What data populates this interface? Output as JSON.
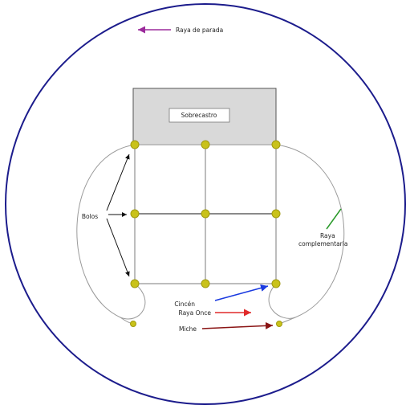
{
  "diagram": {
    "labels": {
      "raya_de_parada": "Raya de parada",
      "sobrecastro": "Sobrecastro",
      "bolos": "Bolos",
      "raya_complementaria_1": "Raya",
      "raya_complementaria_2": "complementaria",
      "cinceo": "Cincén",
      "raya_once": "Raya Once",
      "mache": "Miche"
    },
    "colors": {
      "circle": "#1c1c8c",
      "post": "#c9c21a",
      "post_stroke": "#a09a10",
      "grid_line": "#bdbdbd",
      "curve": "#9a9a9a",
      "sobrecastro_fill": "#d9d9d9",
      "arrow_parada": "#9b2a9b",
      "arrow_bolos": "#111111",
      "arrow_complementaria": "#2a9a2a",
      "arrow_cinceo": "#1a3ae0",
      "arrow_once": "#e02a2a",
      "arrow_mache": "#8a1414"
    }
  }
}
